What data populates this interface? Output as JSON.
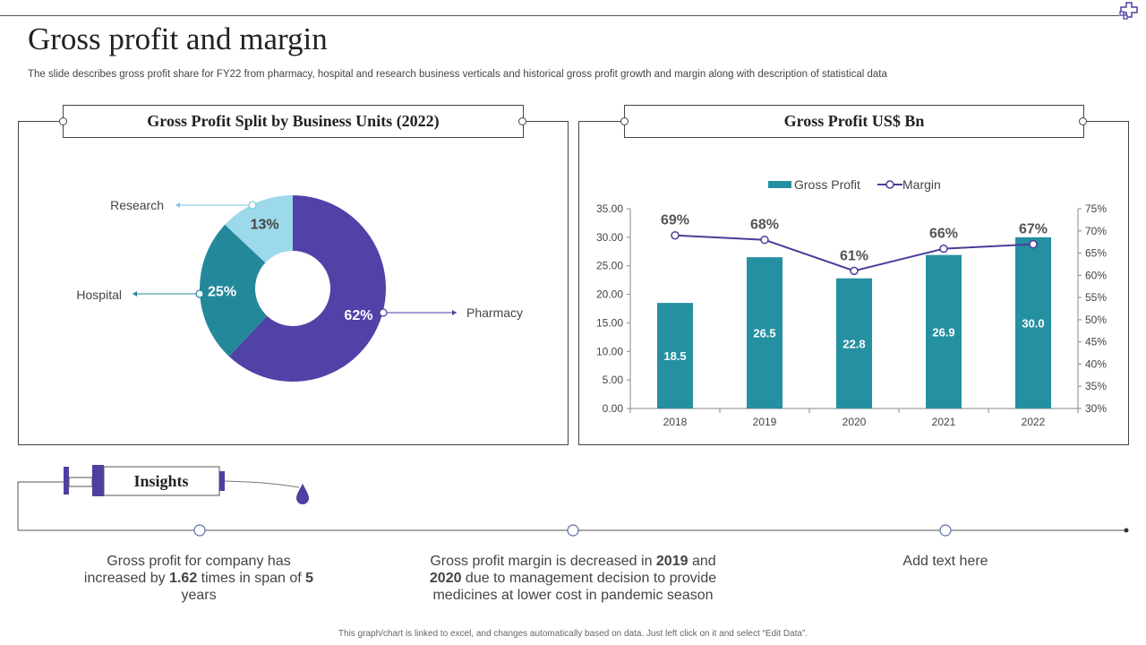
{
  "slide": {
    "title": "Gross profit and margin",
    "subtitle": "The slide describes gross profit share for FY22 from pharmacy, hospital and research business verticals and historical gross profit growth and margin along with description of statistical data",
    "footer": "This graph/chart is linked to excel, and changes automatically based on data. Just left click on it and select “Edit Data”.",
    "corner_icon": "puzzle-cross-icon"
  },
  "colors": {
    "pharmacy": "#5142a8",
    "hospital": "#24889b",
    "research": "#9cd9ea",
    "bar": "#2590a1",
    "margin_line": "#4b3d99",
    "accent_purple": "#4e3fa0"
  },
  "chart_data": [
    {
      "type": "pie",
      "variant": "donut",
      "title": "Gross Profit Split by Business Units (2022)",
      "slices": [
        {
          "label": "Pharmacy",
          "value": 62,
          "display": "62%"
        },
        {
          "label": "Hospital",
          "value": 25,
          "display": "25%"
        },
        {
          "label": "Research",
          "value": 13,
          "display": "13%"
        }
      ]
    },
    {
      "type": "bar",
      "title": "Gross Profit US$ Bn",
      "categories": [
        "2018",
        "2019",
        "2020",
        "2021",
        "2022"
      ],
      "series": [
        {
          "name": "Gross Profit",
          "type": "bar",
          "axis": "left",
          "values": [
            18.5,
            26.5,
            22.8,
            26.9,
            30.0
          ],
          "labels": [
            "18.5",
            "26.5",
            "22.8",
            "26.9",
            "30.0"
          ]
        },
        {
          "name": "Margin",
          "type": "line",
          "axis": "right",
          "values": [
            69,
            68,
            61,
            66,
            67
          ],
          "labels": [
            "69%",
            "68%",
            "61%",
            "66%",
            "67%"
          ]
        }
      ],
      "ylim": [
        0,
        35
      ],
      "yticks": [
        "0.00",
        "5.00",
        "10.00",
        "15.00",
        "20.00",
        "25.00",
        "30.00",
        "35.00"
      ],
      "y2lim": [
        30,
        75
      ],
      "y2ticks": [
        "30%",
        "35%",
        "40%",
        "45%",
        "50%",
        "55%",
        "60%",
        "65%",
        "70%",
        "75%"
      ],
      "legend": "top-center",
      "grid": false
    }
  ],
  "insights": {
    "label": "Insights",
    "icon": "syringe-icon",
    "items": [
      {
        "pre": "Gross profit for company has increased by ",
        "b1": "1.62",
        "mid": " times in span of ",
        "b2": "5",
        "post": " years"
      },
      {
        "pre": "Gross profit margin is decreased in ",
        "b1": "2019",
        "mid": " and ",
        "b2": "2020",
        "post": " due to management decision to provide medicines at lower cost in pandemic season"
      },
      {
        "text": "Add text here"
      }
    ]
  }
}
